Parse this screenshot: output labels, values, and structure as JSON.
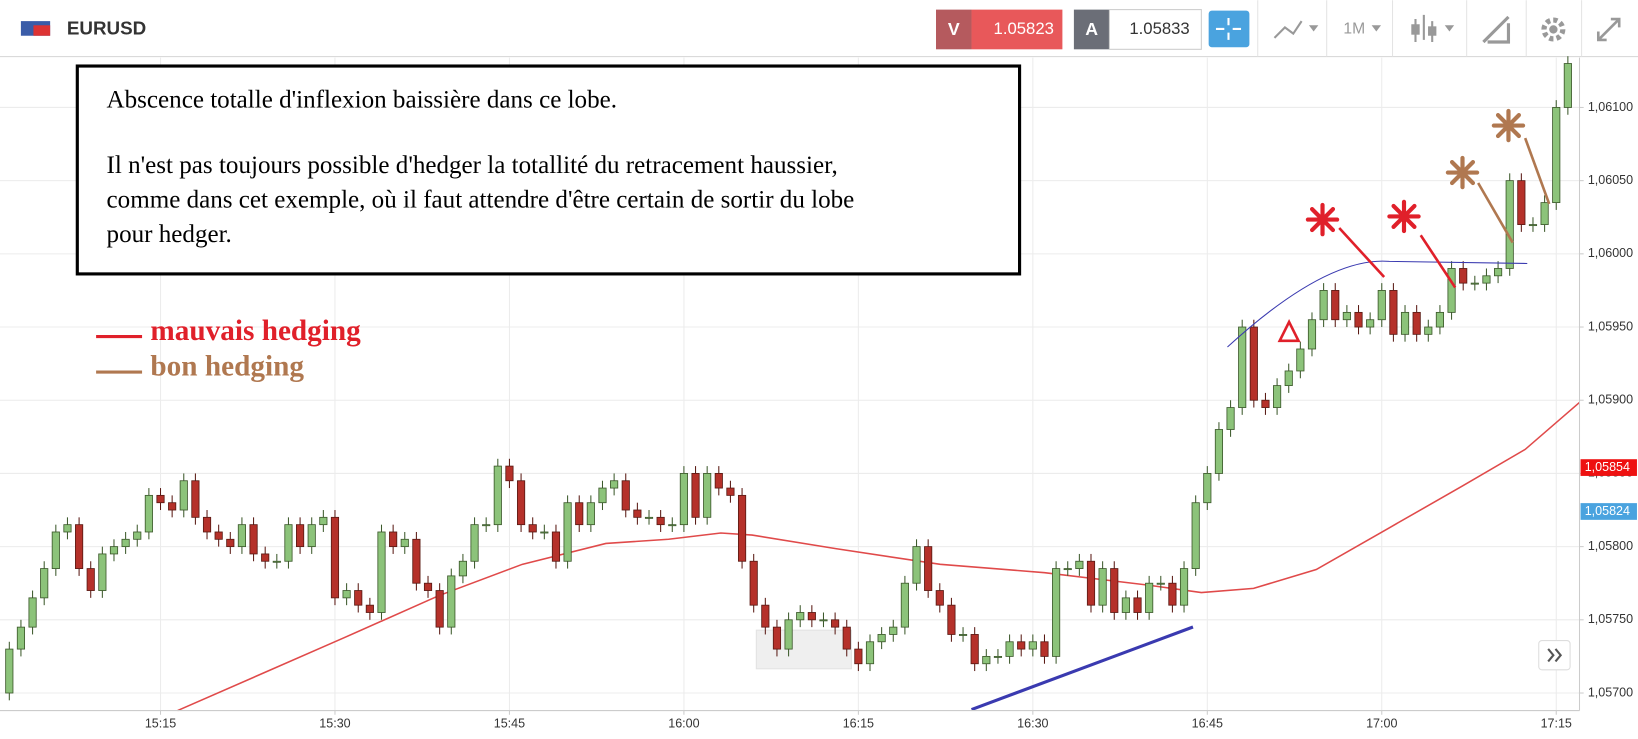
{
  "toolbar": {
    "symbol": "EURUSD",
    "sell_label": "V",
    "sell_price": "1.05823",
    "buy_label": "A",
    "buy_price": "1.05833",
    "timeframe": "1M"
  },
  "chart_data": {
    "type": "candlestick",
    "note_lines": [
      "Abscence totalle d'inflexion baissière dans ce lobe.",
      "Il n'est pas toujours possible d'hedger la totallité du retracement haussier,",
      "comme dans cet exemple, où il faut attendre d'être certain de sortir du lobe",
      "pour hedger."
    ],
    "legend": [
      {
        "name": "mauvais hedging",
        "color": "#e0202a"
      },
      {
        "name": "bon hedging",
        "color": "#b07850"
      }
    ],
    "up_color": "#8cc37a",
    "down_color": "#b5312a",
    "grid": true,
    "xlim": [
      901.2,
      1037
    ],
    "xticks": [
      {
        "value": 915,
        "label": "15:15"
      },
      {
        "value": 930,
        "label": "15:30"
      },
      {
        "value": 945,
        "label": "15:45"
      },
      {
        "value": 960,
        "label": "16:00"
      },
      {
        "value": 975,
        "label": "16:15"
      },
      {
        "value": 990,
        "label": "16:30"
      },
      {
        "value": 1005,
        "label": "16:45"
      },
      {
        "value": 1020,
        "label": "17:00"
      },
      {
        "value": 1035,
        "label": "17:15"
      }
    ],
    "ylim": [
      1.05688,
      1.06134
    ],
    "yticks": [
      {
        "value": 1.057,
        "label": "1,05700"
      },
      {
        "value": 1.0575,
        "label": "1,05750"
      },
      {
        "value": 1.058,
        "label": "1,05800"
      },
      {
        "value": 1.0585,
        "label": "1,05850"
      },
      {
        "value": 1.059,
        "label": "1,05900"
      },
      {
        "value": 1.0595,
        "label": "1,05950"
      },
      {
        "value": 1.06,
        "label": "1,06000"
      },
      {
        "value": 1.0605,
        "label": "1,06050"
      },
      {
        "value": 1.061,
        "label": "1,06100"
      }
    ],
    "price_labels": [
      {
        "value": 1.05854,
        "label": "1,05854",
        "color": "#ee1111"
      },
      {
        "value": 1.05824,
        "label": "1,05824",
        "color": "#4aa3df"
      }
    ],
    "x": [
      902,
      903,
      904,
      905,
      906,
      907,
      908,
      909,
      910,
      911,
      912,
      913,
      914,
      915,
      916,
      917,
      918,
      919,
      920,
      921,
      922,
      923,
      924,
      925,
      926,
      927,
      928,
      929,
      930,
      931,
      932,
      933,
      934,
      935,
      936,
      937,
      938,
      939,
      940,
      941,
      942,
      943,
      944,
      945,
      946,
      947,
      948,
      949,
      950,
      951,
      952,
      953,
      954,
      955,
      956,
      957,
      958,
      959,
      960,
      961,
      962,
      963,
      964,
      965,
      966,
      967,
      968,
      969,
      970,
      971,
      972,
      973,
      974,
      975,
      976,
      977,
      978,
      979,
      980,
      981,
      982,
      983,
      984,
      985,
      986,
      987,
      988,
      989,
      990,
      991,
      992,
      993,
      994,
      995,
      996,
      997,
      998,
      999,
      1000,
      1001,
      1002,
      1003,
      1004,
      1005,
      1006,
      1007,
      1008,
      1009,
      1010,
      1011,
      1012,
      1013,
      1014,
      1015,
      1016,
      1017,
      1018,
      1019,
      1020,
      1021,
      1022,
      1023,
      1024,
      1025,
      1026,
      1027,
      1028,
      1029,
      1030,
      1031,
      1032,
      1033,
      1034,
      1035,
      1036
    ],
    "open": [
      1.057,
      1.0573,
      1.05745,
      1.05765,
      1.05785,
      1.0581,
      1.05815,
      1.05785,
      1.0577,
      1.05795,
      1.058,
      1.05805,
      1.0581,
      1.05835,
      1.0583,
      1.05825,
      1.05845,
      1.0582,
      1.0581,
      1.05805,
      1.058,
      1.05815,
      1.05795,
      1.0579,
      1.0579,
      1.05815,
      1.058,
      1.05815,
      1.0582,
      1.05765,
      1.0577,
      1.0576,
      1.05755,
      1.0581,
      1.058,
      1.05805,
      1.05775,
      1.0577,
      1.05745,
      1.0578,
      1.0579,
      1.05815,
      1.05815,
      1.05855,
      1.05845,
      1.05815,
      1.0581,
      1.0581,
      1.0579,
      1.0583,
      1.05815,
      1.0583,
      1.0584,
      1.05845,
      1.05825,
      1.0582,
      1.0582,
      1.05815,
      1.05815,
      1.0585,
      1.0582,
      1.0585,
      1.0584,
      1.05835,
      1.0579,
      1.0576,
      1.05745,
      1.0573,
      1.0575,
      1.05755,
      1.0575,
      1.0575,
      1.05745,
      1.0573,
      1.0572,
      1.05735,
      1.0574,
      1.05745,
      1.05775,
      1.058,
      1.0577,
      1.0576,
      1.0574,
      1.0574,
      1.0572,
      1.05725,
      1.05725,
      1.05735,
      1.0573,
      1.05735,
      1.05725,
      1.05785,
      1.05785,
      1.0579,
      1.0576,
      1.05785,
      1.05755,
      1.05765,
      1.05755,
      1.05775,
      1.05775,
      1.0576,
      1.05785,
      1.0583,
      1.0585,
      1.0588,
      1.05895,
      1.0595,
      1.059,
      1.05895,
      1.0591,
      1.0592,
      1.05935,
      1.05955,
      1.05975,
      1.05955,
      1.0596,
      1.0595,
      1.05955,
      1.05975,
      1.05945,
      1.0596,
      1.05945,
      1.0595,
      1.0596,
      1.0599,
      1.0598,
      1.0598,
      1.05985,
      1.0599,
      1.0605,
      1.0602,
      1.0602,
      1.06035,
      1.061
    ],
    "high": [
      1.05735,
      1.0575,
      1.0577,
      1.0579,
      1.05815,
      1.0582,
      1.0582,
      1.0579,
      1.058,
      1.05805,
      1.0581,
      1.05815,
      1.0584,
      1.0584,
      1.05835,
      1.0585,
      1.0585,
      1.05825,
      1.05815,
      1.0581,
      1.0582,
      1.0582,
      1.058,
      1.05795,
      1.0582,
      1.0582,
      1.0582,
      1.05825,
      1.05825,
      1.05775,
      1.05775,
      1.05765,
      1.05815,
      1.05815,
      1.0581,
      1.0581,
      1.0578,
      1.05775,
      1.05785,
      1.05795,
      1.0582,
      1.0582,
      1.0586,
      1.0586,
      1.0585,
      1.0582,
      1.05815,
      1.05815,
      1.05835,
      1.05835,
      1.05835,
      1.05845,
      1.0585,
      1.0585,
      1.0583,
      1.05825,
      1.05825,
      1.0582,
      1.05855,
      1.05855,
      1.05855,
      1.05855,
      1.05845,
      1.0584,
      1.05795,
      1.05765,
      1.0575,
      1.05755,
      1.0576,
      1.0576,
      1.05755,
      1.05755,
      1.0575,
      1.05735,
      1.0574,
      1.05745,
      1.0575,
      1.0578,
      1.05805,
      1.05805,
      1.05775,
      1.05765,
      1.05745,
      1.05745,
      1.0573,
      1.0573,
      1.0574,
      1.0574,
      1.0574,
      1.0574,
      1.0579,
      1.0579,
      1.05795,
      1.05795,
      1.0579,
      1.0579,
      1.0577,
      1.0577,
      1.0578,
      1.0578,
      1.0578,
      1.0579,
      1.05835,
      1.05855,
      1.05885,
      1.059,
      1.05955,
      1.05955,
      1.05905,
      1.05915,
      1.05925,
      1.0594,
      1.0596,
      1.0598,
      1.0598,
      1.05965,
      1.05965,
      1.0596,
      1.0598,
      1.0598,
      1.05965,
      1.05965,
      1.05955,
      1.05965,
      1.05995,
      1.05995,
      1.05985,
      1.0599,
      1.05995,
      1.06055,
      1.06055,
      1.06025,
      1.0604,
      1.06105,
      1.06135
    ],
    "low": [
      1.05695,
      1.05725,
      1.0574,
      1.0576,
      1.0578,
      1.05805,
      1.0578,
      1.05765,
      1.05765,
      1.0579,
      1.05795,
      1.058,
      1.05805,
      1.05825,
      1.0582,
      1.0582,
      1.05815,
      1.05805,
      1.058,
      1.05795,
      1.05795,
      1.0579,
      1.05785,
      1.05785,
      1.05785,
      1.05795,
      1.05795,
      1.0581,
      1.0576,
      1.0576,
      1.05755,
      1.0575,
      1.0575,
      1.05795,
      1.05795,
      1.0577,
      1.05765,
      1.0574,
      1.0574,
      1.05775,
      1.05785,
      1.0581,
      1.0581,
      1.0584,
      1.0581,
      1.05805,
      1.05805,
      1.05785,
      1.05785,
      1.0581,
      1.0581,
      1.05825,
      1.05835,
      1.0582,
      1.05815,
      1.05815,
      1.0581,
      1.0581,
      1.0581,
      1.05815,
      1.05815,
      1.05835,
      1.0583,
      1.05785,
      1.05755,
      1.0574,
      1.05725,
      1.05725,
      1.05745,
      1.05745,
      1.05745,
      1.0574,
      1.05725,
      1.05715,
      1.05715,
      1.0573,
      1.05735,
      1.0574,
      1.0577,
      1.05765,
      1.05755,
      1.05735,
      1.05735,
      1.05715,
      1.05715,
      1.0572,
      1.0572,
      1.05725,
      1.05725,
      1.0572,
      1.0572,
      1.0578,
      1.0578,
      1.05755,
      1.05755,
      1.0575,
      1.0575,
      1.0575,
      1.0575,
      1.0577,
      1.05755,
      1.05755,
      1.0578,
      1.05825,
      1.05845,
      1.05875,
      1.0589,
      1.05895,
      1.0589,
      1.0589,
      1.05905,
      1.05915,
      1.0593,
      1.0595,
      1.0595,
      1.0595,
      1.05945,
      1.05945,
      1.0595,
      1.0594,
      1.0594,
      1.0594,
      1.0594,
      1.05945,
      1.05955,
      1.05975,
      1.05975,
      1.05975,
      1.0598,
      1.05985,
      1.06015,
      1.06015,
      1.06015,
      1.0603,
      1.06095
    ],
    "close": [
      1.0573,
      1.05745,
      1.05765,
      1.05785,
      1.0581,
      1.05815,
      1.05785,
      1.0577,
      1.05795,
      1.058,
      1.05805,
      1.0581,
      1.05835,
      1.0583,
      1.05825,
      1.05845,
      1.0582,
      1.0581,
      1.05805,
      1.058,
      1.05815,
      1.05795,
      1.0579,
      1.0579,
      1.05815,
      1.058,
      1.05815,
      1.0582,
      1.05765,
      1.0577,
      1.0576,
      1.05755,
      1.0581,
      1.058,
      1.05805,
      1.05775,
      1.0577,
      1.05745,
      1.0578,
      1.0579,
      1.05815,
      1.05815,
      1.05855,
      1.05845,
      1.05815,
      1.0581,
      1.0581,
      1.0579,
      1.0583,
      1.05815,
      1.0583,
      1.0584,
      1.05845,
      1.05825,
      1.0582,
      1.0582,
      1.05815,
      1.05815,
      1.0585,
      1.0582,
      1.0585,
      1.0584,
      1.05835,
      1.0579,
      1.0576,
      1.05745,
      1.0573,
      1.0575,
      1.05755,
      1.0575,
      1.0575,
      1.05745,
      1.0573,
      1.0572,
      1.05735,
      1.0574,
      1.05745,
      1.05775,
      1.058,
      1.0577,
      1.0576,
      1.0574,
      1.0574,
      1.0572,
      1.05725,
      1.05725,
      1.05735,
      1.0573,
      1.05735,
      1.05725,
      1.05785,
      1.05785,
      1.0579,
      1.0576,
      1.05785,
      1.05755,
      1.05765,
      1.05755,
      1.05775,
      1.05775,
      1.0576,
      1.05785,
      1.0583,
      1.0585,
      1.0588,
      1.05895,
      1.0595,
      1.059,
      1.05895,
      1.0591,
      1.0592,
      1.05935,
      1.05955,
      1.05975,
      1.05955,
      1.0596,
      1.0595,
      1.05955,
      1.05975,
      1.05945,
      1.0596,
      1.05945,
      1.0595,
      1.0596,
      1.0599,
      1.0598,
      1.0598,
      1.05985,
      1.0599,
      1.0605,
      1.0602,
      1.0602,
      1.06035,
      1.061,
      1.0613
    ]
  }
}
